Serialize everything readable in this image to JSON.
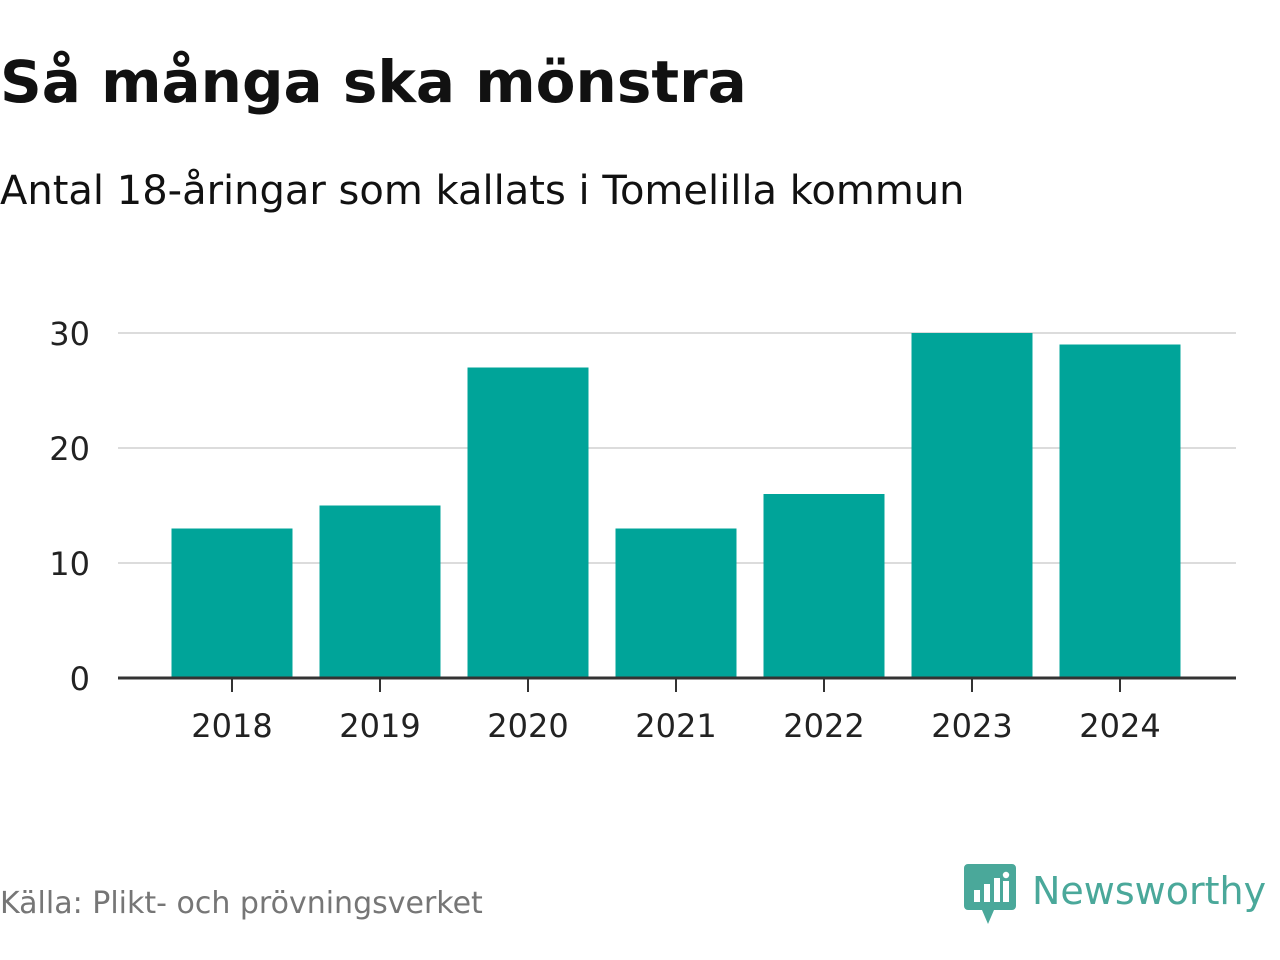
{
  "header": {
    "title": "Så många ska mönstra",
    "subtitle": "Antal 18-åringar som kallats i Tomelilla kommun"
  },
  "footer": {
    "source": "Källa: Plikt- och prövningsverket",
    "brand_name": "Newsworthy",
    "brand_icon": "bar-chart-speech-bubble-icon"
  },
  "colors": {
    "bar": "#00a499",
    "grid": "#dcdcdc",
    "axis": "#333333",
    "brand": "#4aa89a",
    "source_text": "#767676"
  },
  "chart_data": {
    "type": "bar",
    "categories": [
      "2018",
      "2019",
      "2020",
      "2021",
      "2022",
      "2023",
      "2024"
    ],
    "values": [
      13,
      15,
      27,
      13,
      16,
      30,
      29
    ],
    "yticks": [
      0,
      10,
      20,
      30
    ],
    "ylim": [
      0,
      30
    ],
    "grid": true,
    "legend": "none"
  }
}
